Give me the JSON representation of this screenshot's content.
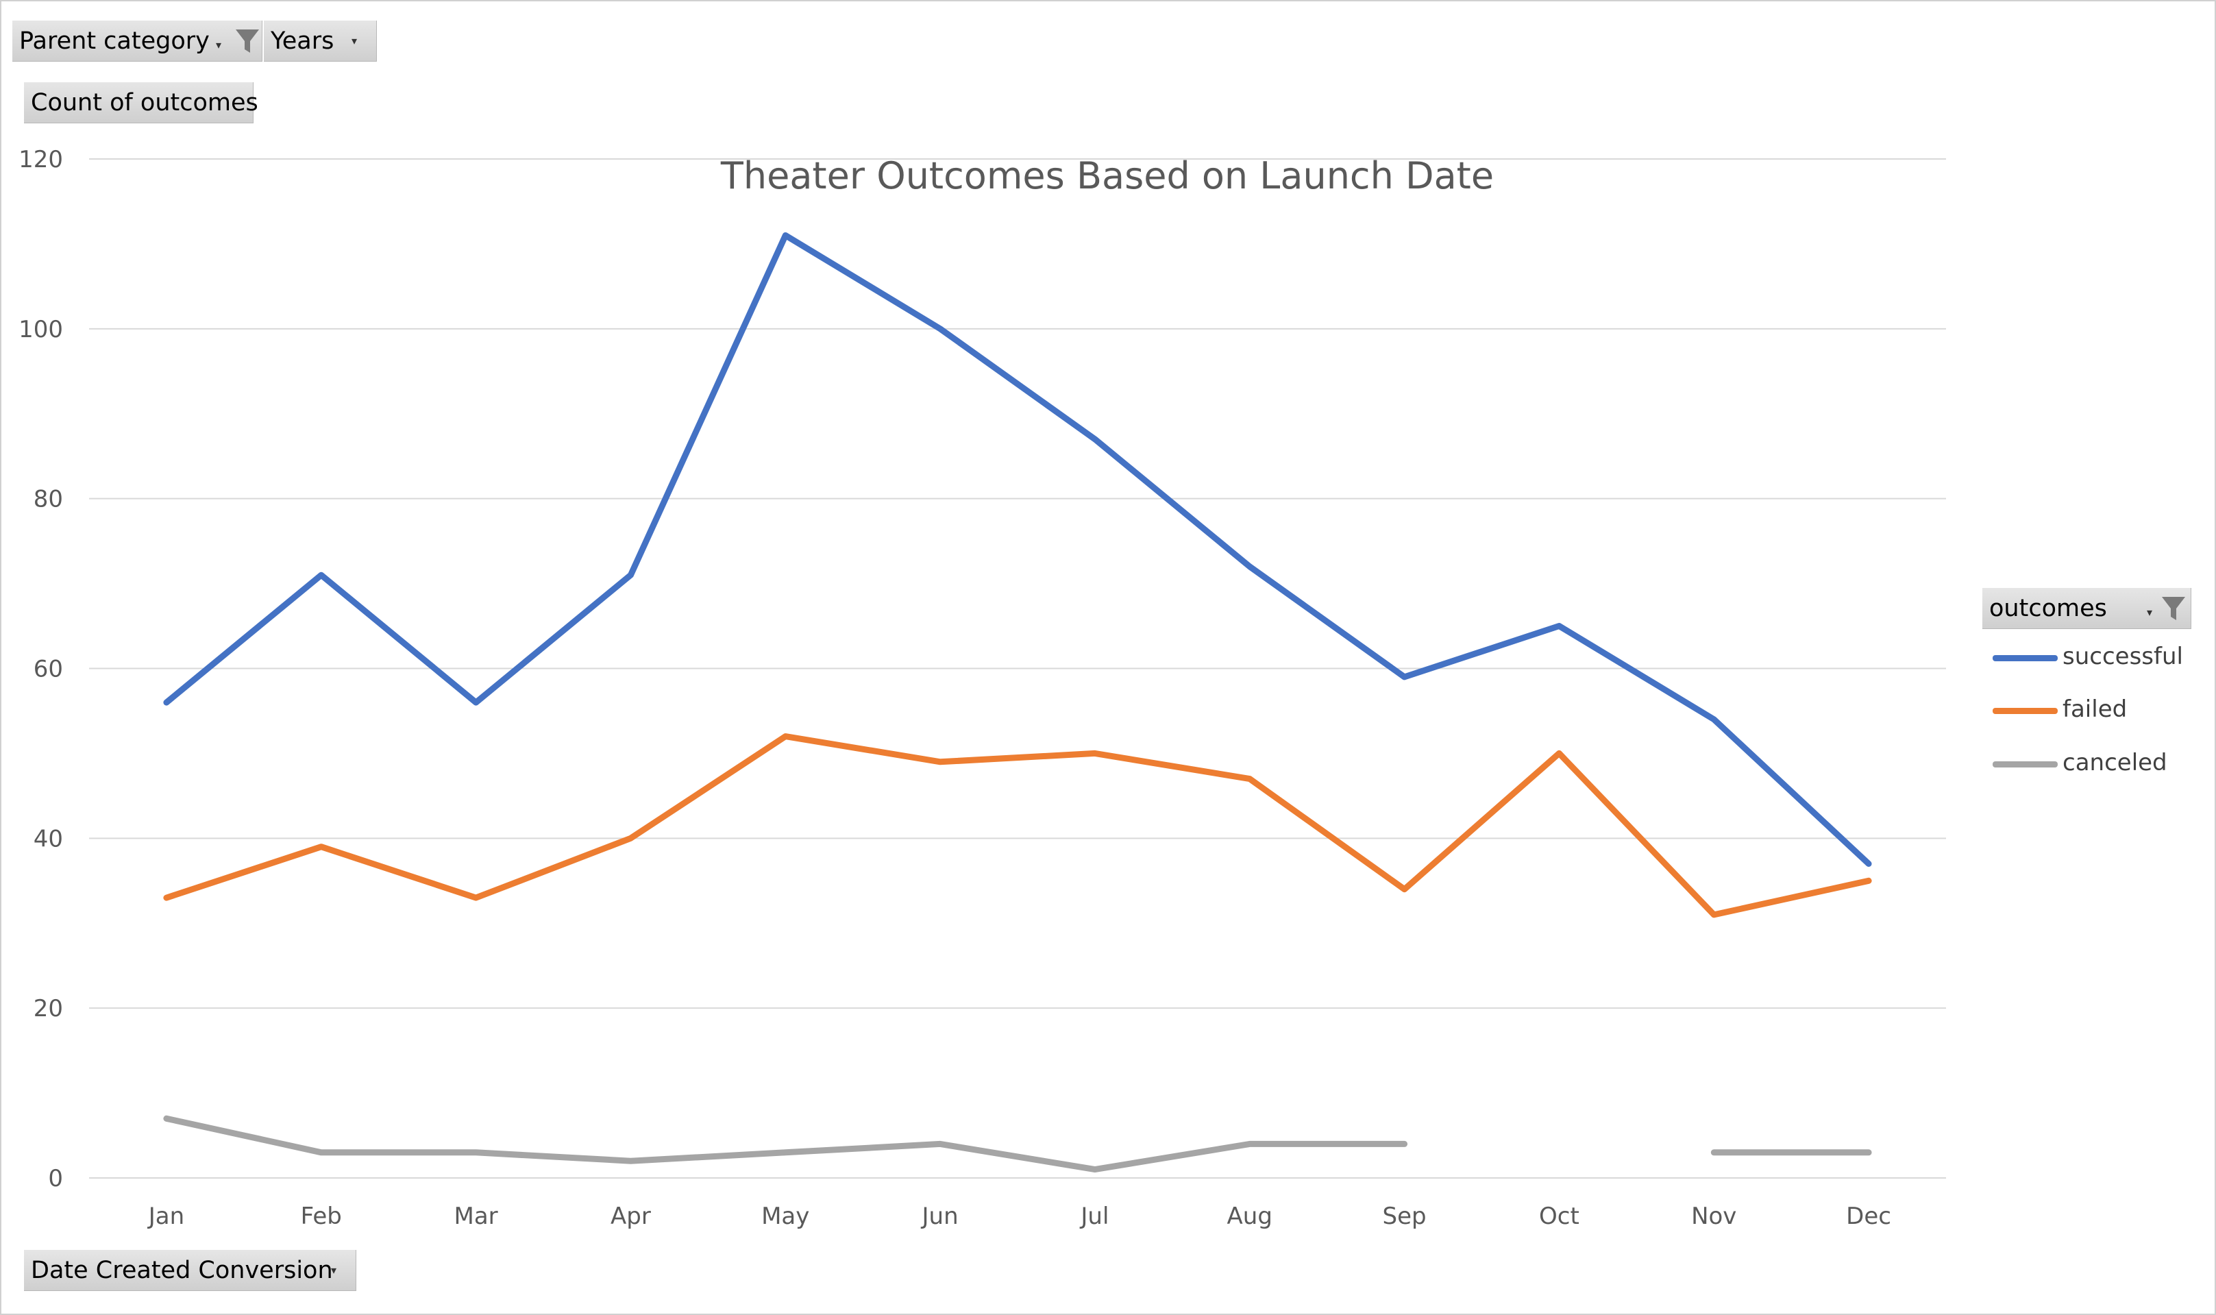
{
  "filters": {
    "parent_category": "Parent category",
    "years": "Years",
    "values_field": "Count of outcomes",
    "axis_field": "Date Created Conversion",
    "legend_field": "outcomes"
  },
  "colors": {
    "successful": "#4472c4",
    "failed": "#ed7d31",
    "canceled": "#a5a5a5",
    "gridline": "#d9d9d9",
    "axis_text": "#595959"
  },
  "chart_data": {
    "type": "line",
    "title": "Theater Outcomes Based on Launch Date",
    "xlabel": "",
    "ylabel": "",
    "categories": [
      "Jan",
      "Feb",
      "Mar",
      "Apr",
      "May",
      "Jun",
      "Jul",
      "Aug",
      "Sep",
      "Oct",
      "Nov",
      "Dec"
    ],
    "ylim": [
      0,
      120
    ],
    "yticks": [
      0,
      20,
      40,
      60,
      80,
      100,
      120
    ],
    "grid": true,
    "legend_position": "right",
    "series": [
      {
        "name": "successful",
        "values": [
          56,
          71,
          56,
          71,
          111,
          100,
          87,
          72,
          59,
          65,
          54,
          37
        ]
      },
      {
        "name": "failed",
        "values": [
          33,
          39,
          33,
          40,
          52,
          49,
          50,
          47,
          34,
          50,
          31,
          35
        ]
      },
      {
        "name": "canceled",
        "values": [
          7,
          3,
          3,
          2,
          3,
          4,
          1,
          4,
          4,
          null,
          3,
          3
        ]
      }
    ]
  }
}
